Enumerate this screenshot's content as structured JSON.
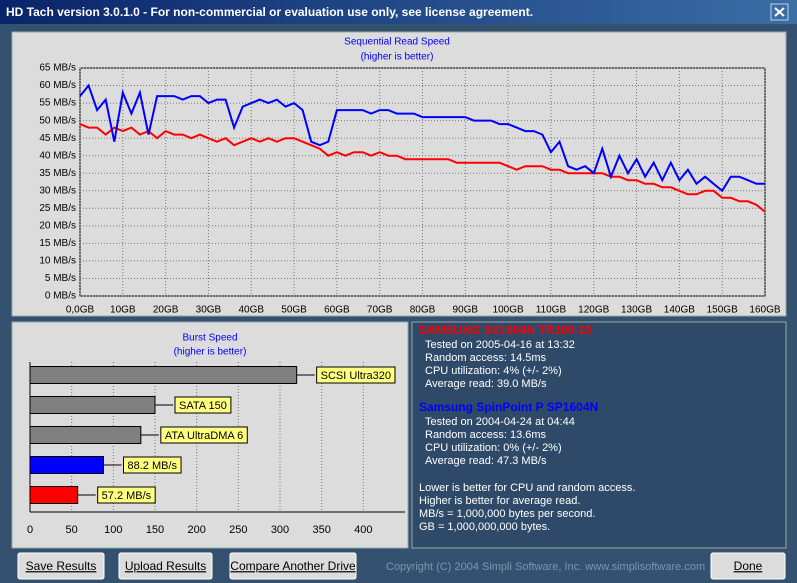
{
  "window": {
    "title": "HD Tach version 3.0.1.0  - For non-commercial or evaluation use only, see license agreement."
  },
  "chart_data": [
    {
      "type": "line",
      "title": "Sequential Read Speed",
      "subtitle": "(higher is better)",
      "x": [
        0,
        2,
        4,
        6,
        8,
        10,
        12,
        14,
        16,
        18,
        20,
        22,
        24,
        26,
        28,
        30,
        32,
        34,
        36,
        38,
        40,
        42,
        44,
        46,
        48,
        50,
        52,
        54,
        56,
        58,
        60,
        62,
        64,
        66,
        68,
        70,
        72,
        74,
        76,
        78,
        80,
        82,
        84,
        86,
        88,
        90,
        92,
        94,
        96,
        98,
        100,
        102,
        104,
        106,
        108,
        110,
        112,
        114,
        116,
        118,
        120,
        122,
        124,
        126,
        128,
        130,
        132,
        134,
        136,
        138,
        140,
        142,
        144,
        146,
        148,
        150,
        152,
        154,
        156,
        158,
        160
      ],
      "series": [
        {
          "name": "SAMSUNG SV1604N TR100-23",
          "color": "#ff0000",
          "values": [
            49,
            48,
            48,
            46,
            48,
            47,
            48,
            46,
            47,
            45,
            47,
            46,
            46,
            45,
            46,
            45,
            44,
            45,
            43,
            44,
            45,
            44,
            45,
            44,
            45,
            45,
            44,
            43,
            42,
            40,
            41,
            40,
            41,
            41,
            40,
            41,
            40,
            40,
            39,
            39,
            39,
            39,
            39,
            39,
            38,
            38,
            38,
            38,
            38,
            38,
            37,
            36,
            37,
            37,
            37,
            36,
            36,
            35,
            35,
            35,
            35,
            35,
            34,
            34,
            33,
            33,
            32,
            32,
            31,
            31,
            30,
            29,
            29,
            30,
            30,
            28,
            28,
            27,
            27,
            26,
            24
          ]
        },
        {
          "name": "Samsung SpinPoint P SP1604N",
          "color": "#0000ff",
          "values": [
            57,
            60,
            53,
            56,
            44,
            58,
            52,
            58,
            46,
            57,
            57,
            57,
            56,
            57,
            57,
            55,
            56,
            56,
            48,
            54,
            55,
            56,
            55,
            56,
            54,
            55,
            53,
            44,
            43,
            44,
            53,
            53,
            53,
            53,
            52,
            53,
            53,
            52,
            52,
            52,
            51,
            51,
            51,
            51,
            51,
            51,
            50,
            50,
            50,
            49,
            49,
            48,
            47,
            47,
            46,
            41,
            44,
            37,
            36,
            37,
            35,
            42,
            34,
            40,
            35,
            39,
            34,
            38,
            33,
            38,
            33,
            36,
            32,
            34,
            32,
            30,
            34,
            34,
            33,
            32,
            32
          ]
        }
      ],
      "xlim": [
        0,
        160
      ],
      "xticks": [
        {
          "value": 0,
          "label": "0,0GB"
        },
        {
          "value": 10,
          "label": "10GB"
        },
        {
          "value": 20,
          "label": "20GB"
        },
        {
          "value": 30,
          "label": "30GB"
        },
        {
          "value": 40,
          "label": "40GB"
        },
        {
          "value": 50,
          "label": "50GB"
        },
        {
          "value": 60,
          "label": "60GB"
        },
        {
          "value": 70,
          "label": "70GB"
        },
        {
          "value": 80,
          "label": "80GB"
        },
        {
          "value": 90,
          "label": "90GB"
        },
        {
          "value": 100,
          "label": "100GB"
        },
        {
          "value": 110,
          "label": "110GB"
        },
        {
          "value": 120,
          "label": "120GB"
        },
        {
          "value": 130,
          "label": "130GB"
        },
        {
          "value": 140,
          "label": "140GB"
        },
        {
          "value": 150,
          "label": "150GB"
        },
        {
          "value": 160,
          "label": "160GB"
        }
      ],
      "ylim": [
        0,
        65
      ],
      "yticks": [
        {
          "value": 0,
          "label": "0 MB/s"
        },
        {
          "value": 5,
          "label": "5 MB/s"
        },
        {
          "value": 10,
          "label": "10 MB/s"
        },
        {
          "value": 15,
          "label": "15 MB/s"
        },
        {
          "value": 20,
          "label": "20 MB/s"
        },
        {
          "value": 25,
          "label": "25 MB/s"
        },
        {
          "value": 30,
          "label": "30 MB/s"
        },
        {
          "value": 35,
          "label": "35 MB/s"
        },
        {
          "value": 40,
          "label": "40 MB/s"
        },
        {
          "value": 45,
          "label": "45 MB/s"
        },
        {
          "value": 50,
          "label": "50 MB/s"
        },
        {
          "value": 55,
          "label": "55 MB/s"
        },
        {
          "value": 60,
          "label": "60 MB/s"
        },
        {
          "value": 65,
          "label": "65 MB/s"
        }
      ],
      "grid": true
    },
    {
      "type": "hbar",
      "title": "Burst Speed",
      "subtitle": "(higher is better)",
      "categories": [
        "SCSI Ultra320",
        "SATA 150",
        "ATA UltraDMA 6",
        null,
        null
      ],
      "values": [
        320,
        150,
        133,
        88.2,
        57.2
      ],
      "value_labels": [
        null,
        null,
        null,
        "88.2 MB/s",
        "57.2 MB/s"
      ],
      "colors": [
        "#808080",
        "#808080",
        "#808080",
        "#0000ff",
        "#ff0000"
      ],
      "xlim": [
        0,
        450
      ],
      "xticks": [
        0,
        50,
        100,
        150,
        200,
        250,
        300,
        350,
        400
      ],
      "grid": true
    }
  ],
  "info": {
    "drives": [
      {
        "lines": [
          "Tested on 2005-04-16 at 13:32",
          "Random access: 14.5ms",
          "CPU utilization: 4% (+/- 2%)",
          "Average read: 39.0 MB/s"
        ]
      },
      {
        "lines": [
          "Tested on 2004-04-24 at 04:44",
          "Random access: 13.6ms",
          "CPU utilization: 0% (+/- 2%)",
          "Average read: 47.3 MB/s"
        ]
      }
    ],
    "notes": [
      "Lower is better for CPU and random access.",
      "Higher is better for average read.",
      "MB/s = 1,000,000 bytes per second.",
      "GB = 1,000,000,000 bytes."
    ]
  },
  "buttons": [
    "Save Results",
    "Upload Results",
    "Compare Another Drive",
    "Done"
  ],
  "copyright": "Copyright (C) 2004 Simpli Software, Inc. www.simplisoftware.com"
}
